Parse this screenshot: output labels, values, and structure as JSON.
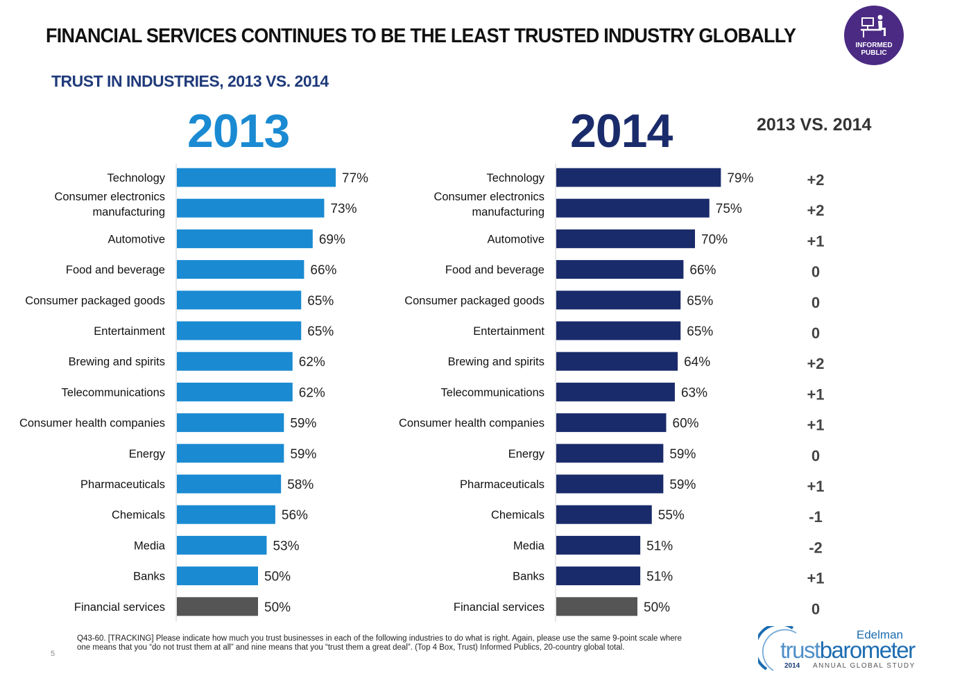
{
  "header": {
    "title": "FINANCIAL SERVICES CONTINUES TO BE THE LEAST TRUSTED INDUSTRY GLOBALLY",
    "subtitle": "TRUST IN INDUSTRIES, 2013 VS. 2014"
  },
  "badge": {
    "line1": "INFORMED",
    "line2": "PUBLIC",
    "icon": "person-at-desk-icon",
    "color": "#4b2a83"
  },
  "colors": {
    "bar_2013": "#1a8ad2",
    "bar_2014": "#1a2b6b",
    "bar_highlight": "#555555"
  },
  "chart_data": [
    {
      "type": "bar",
      "orientation": "horizontal",
      "title": "2013",
      "categories": [
        "Technology",
        "Consumer electronics manufacturing",
        "Automotive",
        "Food and beverage",
        "Consumer packaged goods",
        "Entertainment",
        "Brewing and spirits",
        "Telecommunications",
        "Consumer health companies",
        "Energy",
        "Pharmaceuticals",
        "Chemicals",
        "Media",
        "Banks",
        "Financial services"
      ],
      "category_lines": [
        [
          "Technology"
        ],
        [
          "Consumer electronics",
          "manufacturing"
        ],
        [
          "Automotive"
        ],
        [
          "Food and beverage"
        ],
        [
          "Consumer packaged goods"
        ],
        [
          "Entertainment"
        ],
        [
          "Brewing and spirits"
        ],
        [
          "Telecommunications"
        ],
        [
          "Consumer health companies"
        ],
        [
          "Energy"
        ],
        [
          "Pharmaceuticals"
        ],
        [
          "Chemicals"
        ],
        [
          "Media"
        ],
        [
          "Banks"
        ],
        [
          "Financial services"
        ]
      ],
      "values": [
        77,
        73,
        69,
        66,
        65,
        65,
        62,
        62,
        59,
        59,
        58,
        56,
        53,
        50,
        50
      ],
      "value_labels": [
        "77%",
        "73%",
        "69%",
        "66%",
        "65%",
        "65%",
        "62%",
        "62%",
        "59%",
        "59%",
        "58%",
        "56%",
        "53%",
        "50%",
        "50%"
      ],
      "highlight": "Financial services",
      "xlim": [
        0,
        100
      ]
    },
    {
      "type": "bar",
      "orientation": "horizontal",
      "title": "2014",
      "categories": [
        "Technology",
        "Consumer electronics manufacturing",
        "Automotive",
        "Food and beverage",
        "Consumer packaged goods",
        "Entertainment",
        "Brewing and spirits",
        "Telecommunications",
        "Consumer health companies",
        "Energy",
        "Pharmaceuticals",
        "Chemicals",
        "Media",
        "Banks",
        "Financial services"
      ],
      "category_lines": [
        [
          "Technology"
        ],
        [
          "Consumer electronics",
          "manufacturing"
        ],
        [
          "Automotive"
        ],
        [
          "Food and beverage"
        ],
        [
          "Consumer packaged goods"
        ],
        [
          "Entertainment"
        ],
        [
          "Brewing and spirits"
        ],
        [
          "Telecommunications"
        ],
        [
          "Consumer health companies"
        ],
        [
          "Energy"
        ],
        [
          "Pharmaceuticals"
        ],
        [
          "Chemicals"
        ],
        [
          "Media"
        ],
        [
          "Banks"
        ],
        [
          "Financial services"
        ]
      ],
      "values": [
        79,
        75,
        70,
        66,
        65,
        65,
        64,
        63,
        60,
        59,
        59,
        55,
        51,
        51,
        50
      ],
      "value_labels": [
        "79%",
        "75%",
        "70%",
        "66%",
        "65%",
        "65%",
        "64%",
        "63%",
        "60%",
        "59%",
        "59%",
        "55%",
        "51%",
        "51%",
        "50%"
      ],
      "highlight": "Financial services",
      "xlim": [
        0,
        100
      ]
    },
    {
      "type": "table",
      "title": "2013 VS. 2014",
      "values": [
        "+2",
        "+2",
        "+1",
        "0",
        "0",
        "0",
        "+2",
        "+1",
        "+1",
        "0",
        "+1",
        "-1",
        "-2",
        "+1",
        "0"
      ]
    }
  ],
  "footnote": {
    "line1": "Q43-60. [TRACKING] Please indicate how much you trust businesses in each of the following industries to do what is right.  Again, please use the same 9-point scale where",
    "line2": "one means that you “do not trust them at all” and nine means that you “trust them a great deal”. (Top 4 Box, Trust) Informed Publics, 20-country global total."
  },
  "page_number": "5",
  "logo": {
    "brand": "Edelman",
    "name_part1": "trust",
    "name_part2": "barometer",
    "year": "2014",
    "study": "ANNUAL GLOBAL STUDY"
  }
}
